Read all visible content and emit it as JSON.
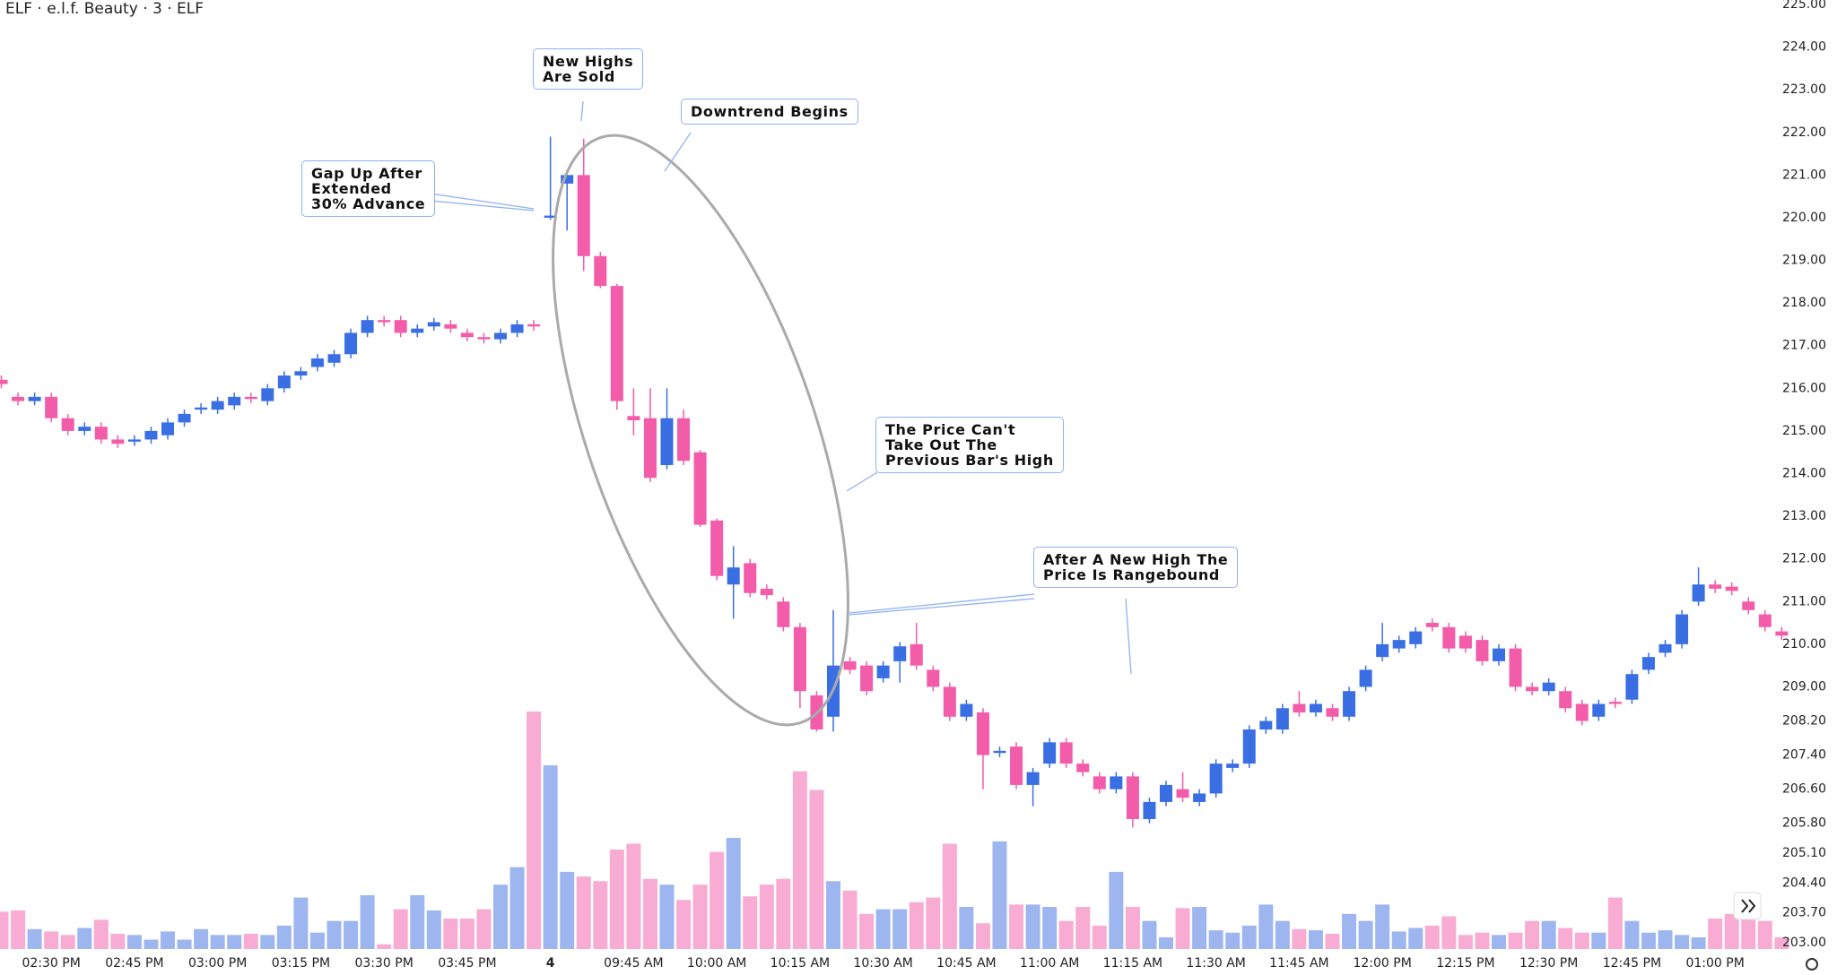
{
  "chart_data": {
    "type": "candlestick",
    "title": "ELF · e.l.f. Beauty · 3 · ELF",
    "up_color": "#3a6ee3",
    "down_color": "#f25ca9",
    "volume_up_color": "#9db6f0",
    "volume_down_color": "#f8acd3",
    "categories": [
      null,
      null,
      null,
      "02:30 PM",
      null,
      null,
      null,
      null,
      "02:45 PM",
      null,
      null,
      null,
      null,
      "03:00 PM",
      null,
      null,
      null,
      null,
      "03:15 PM",
      null,
      null,
      null,
      null,
      "03:30 PM",
      null,
      null,
      null,
      null,
      "03:45 PM",
      null,
      null,
      null,
      null,
      "4",
      null,
      null,
      null,
      null,
      "09:45 AM",
      null,
      null,
      null,
      null,
      "10:00 AM",
      null,
      null,
      null,
      null,
      "10:15 AM",
      null,
      null,
      null,
      null,
      "10:30 AM",
      null,
      null,
      null,
      null,
      "10:45 AM",
      null,
      null,
      null,
      null,
      "11:00 AM",
      null,
      null,
      null,
      null,
      "11:15 AM",
      null,
      null,
      null,
      null,
      "11:30 AM",
      null,
      null,
      null,
      null,
      "11:45 AM",
      null,
      null,
      null,
      null,
      "12:00 PM",
      null,
      null,
      null,
      null,
      "12:15 PM",
      null,
      null,
      null,
      null,
      "12:30 PM",
      null,
      null,
      null,
      null,
      "12:45 PM",
      null,
      null,
      null,
      null,
      "01:00 PM",
      null,
      null,
      null,
      null
    ],
    "open": [
      216.2,
      215.8,
      215.7,
      215.8,
      215.3,
      215.0,
      215.1,
      214.8,
      214.75,
      214.8,
      214.9,
      215.2,
      215.5,
      215.5,
      215.6,
      215.8,
      215.7,
      216.0,
      216.3,
      216.5,
      216.6,
      216.8,
      217.3,
      217.6,
      217.6,
      217.3,
      217.45,
      217.5,
      217.3,
      217.2,
      217.15,
      217.3,
      217.5,
      220.0,
      220.8,
      221.0,
      219.1,
      218.4,
      215.35,
      215.3,
      214.2,
      215.3,
      214.5,
      212.9,
      211.4,
      211.9,
      211.3,
      211.0,
      210.4,
      208.8,
      208.3,
      209.6,
      209.5,
      209.2,
      209.6,
      210.0,
      209.4,
      209.0,
      208.3,
      208.4,
      207.45,
      207.6,
      206.7,
      207.2,
      207.7,
      207.2,
      206.9,
      206.6,
      206.9,
      205.9,
      206.3,
      206.6,
      206.3,
      206.5,
      207.1,
      207.2,
      208.0,
      208.0,
      208.6,
      208.4,
      208.5,
      208.3,
      209.0,
      209.7,
      209.9,
      210.0,
      210.5,
      210.4,
      210.2,
      210.1,
      209.6,
      209.9,
      209.0,
      208.9,
      208.9,
      208.6,
      208.3,
      208.65,
      208.7,
      209.4,
      209.8,
      210.0,
      211.0,
      211.4,
      211.35,
      211.0,
      210.7,
      210.3
    ],
    "high": [
      216.3,
      215.9,
      215.9,
      215.9,
      215.4,
      215.2,
      215.2,
      214.9,
      214.9,
      215.1,
      215.3,
      215.5,
      215.65,
      215.8,
      215.9,
      215.9,
      216.1,
      216.4,
      216.5,
      216.8,
      216.9,
      217.4,
      217.7,
      217.7,
      217.7,
      217.5,
      217.65,
      217.6,
      217.4,
      217.3,
      217.4,
      217.6,
      217.6,
      221.9,
      221.05,
      221.85,
      219.2,
      218.45,
      216.0,
      216.0,
      216.0,
      215.5,
      214.55,
      212.95,
      212.3,
      212.0,
      211.4,
      211.1,
      210.5,
      208.9,
      210.8,
      209.7,
      209.6,
      209.6,
      210.05,
      210.5,
      209.5,
      209.1,
      208.7,
      208.5,
      207.6,
      207.7,
      207.1,
      207.8,
      207.8,
      207.3,
      207.0,
      207.0,
      207.0,
      206.4,
      206.8,
      207.0,
      206.6,
      207.3,
      207.3,
      208.1,
      208.3,
      208.6,
      208.9,
      208.7,
      208.6,
      209.0,
      209.5,
      210.5,
      210.2,
      210.4,
      210.6,
      210.5,
      210.3,
      210.2,
      210.0,
      210.0,
      209.1,
      209.2,
      209.0,
      208.7,
      208.7,
      208.75,
      209.4,
      209.8,
      210.1,
      210.8,
      211.8,
      211.5,
      211.45,
      211.1,
      210.8,
      210.4
    ],
    "low": [
      216.0,
      215.6,
      215.6,
      215.2,
      214.9,
      214.9,
      214.7,
      214.6,
      214.65,
      214.7,
      214.8,
      215.1,
      215.4,
      215.4,
      215.5,
      215.65,
      215.6,
      215.9,
      216.2,
      216.4,
      216.5,
      216.7,
      217.2,
      217.45,
      217.2,
      217.2,
      217.35,
      217.3,
      217.1,
      217.05,
      217.05,
      217.2,
      217.35,
      219.95,
      219.7,
      218.75,
      218.35,
      215.5,
      214.9,
      213.8,
      214.1,
      214.2,
      212.75,
      211.5,
      210.6,
      211.1,
      211.05,
      210.3,
      208.5,
      207.95,
      207.95,
      209.3,
      208.8,
      209.1,
      209.1,
      209.4,
      208.9,
      208.2,
      208.2,
      206.6,
      207.35,
      206.6,
      206.2,
      207.1,
      207.1,
      206.9,
      206.5,
      206.5,
      205.7,
      205.8,
      206.2,
      206.3,
      206.2,
      206.4,
      207.0,
      207.1,
      207.9,
      207.9,
      208.3,
      208.3,
      208.2,
      208.2,
      208.9,
      209.6,
      209.8,
      209.9,
      210.3,
      209.8,
      209.8,
      209.5,
      209.5,
      208.9,
      208.8,
      208.8,
      208.4,
      208.1,
      208.2,
      208.5,
      208.6,
      209.3,
      209.7,
      209.9,
      210.9,
      211.2,
      211.15,
      210.7,
      210.3,
      210.1
    ],
    "close": [
      216.1,
      215.7,
      215.8,
      215.3,
      215.0,
      215.1,
      214.8,
      214.7,
      214.8,
      215.0,
      215.2,
      215.4,
      215.55,
      215.7,
      215.8,
      215.75,
      216.0,
      216.3,
      216.4,
      216.7,
      216.8,
      217.3,
      217.6,
      217.55,
      217.3,
      217.4,
      217.55,
      217.4,
      217.2,
      217.15,
      217.3,
      217.5,
      217.45,
      220.05,
      221.0,
      219.1,
      218.4,
      215.7,
      215.25,
      213.9,
      215.3,
      214.3,
      212.8,
      211.6,
      211.8,
      211.2,
      211.15,
      210.4,
      208.9,
      208.0,
      209.5,
      209.4,
      208.9,
      209.5,
      209.95,
      209.5,
      209.0,
      208.3,
      208.6,
      207.4,
      207.5,
      206.7,
      207.0,
      207.7,
      207.2,
      207.0,
      206.6,
      206.9,
      205.9,
      206.3,
      206.7,
      206.4,
      206.5,
      207.2,
      207.2,
      208.0,
      208.2,
      208.5,
      208.4,
      208.6,
      208.3,
      208.9,
      209.4,
      210.0,
      210.1,
      210.3,
      210.4,
      209.9,
      209.9,
      209.6,
      209.9,
      209.0,
      208.9,
      209.1,
      208.5,
      208.2,
      208.6,
      208.6,
      209.3,
      209.7,
      210.0,
      210.7,
      211.4,
      211.3,
      211.25,
      210.8,
      210.4,
      210.2
    ],
    "volume": [
      32,
      33,
      17,
      15,
      12,
      18,
      25,
      13,
      12,
      8,
      15,
      8,
      17,
      12,
      12,
      13,
      12,
      20,
      44,
      14,
      24,
      24,
      46,
      4,
      34,
      46,
      33,
      26,
      26,
      34,
      55,
      70,
      203,
      157,
      66,
      62,
      58,
      85,
      90,
      60,
      55,
      42,
      55,
      83,
      95,
      45,
      55,
      60,
      152,
      136,
      58,
      50,
      30,
      34,
      34,
      40,
      44,
      90,
      36,
      22,
      92,
      38,
      38,
      36,
      24,
      36,
      20,
      66,
      36,
      24,
      10,
      35,
      36,
      16,
      14,
      20,
      38,
      24,
      17,
      16,
      13,
      30,
      24,
      38,
      15,
      18,
      20,
      28,
      12,
      14,
      12,
      14,
      24,
      24,
      18,
      14,
      14,
      44,
      24,
      14,
      16,
      12,
      10,
      26,
      30,
      32,
      24,
      10
    ],
    "ylim": [
      203,
      225
    ],
    "yticks": [
      {
        "value": 225,
        "label": "225.00"
      },
      {
        "value": 224,
        "label": "224.00"
      },
      {
        "value": 223,
        "label": "223.00"
      },
      {
        "value": 222,
        "label": "222.00"
      },
      {
        "value": 221,
        "label": "221.00"
      },
      {
        "value": 220,
        "label": "220.00"
      },
      {
        "value": 219,
        "label": "219.00"
      },
      {
        "value": 218,
        "label": "218.00"
      },
      {
        "value": 217,
        "label": "217.00"
      },
      {
        "value": 216,
        "label": "216.00"
      },
      {
        "value": 215,
        "label": "215.00"
      },
      {
        "value": 214,
        "label": "214.00"
      },
      {
        "value": 213,
        "label": "213.00"
      },
      {
        "value": 212,
        "label": "212.00"
      },
      {
        "value": 211,
        "label": "211.00"
      },
      {
        "value": 210,
        "label": "210.00"
      },
      {
        "value": 209,
        "label": "209.00"
      },
      {
        "value": 208.2,
        "label": "208.20"
      },
      {
        "value": 207.4,
        "label": "207.40"
      },
      {
        "value": 206.6,
        "label": "206.60"
      },
      {
        "value": 205.8,
        "label": "205.80"
      },
      {
        "value": 205.1,
        "label": "205.10"
      },
      {
        "value": 204.4,
        "label": "204.40"
      },
      {
        "value": 203.7,
        "label": "203.70"
      },
      {
        "value": 203,
        "label": "203.00"
      }
    ],
    "annotations": [
      {
        "text": "New Highs\nAre Sold"
      },
      {
        "text": "Downtrend Begins"
      },
      {
        "text": "Gap Up After\nExtended\n30% Advance"
      },
      {
        "text": "The Price Can't\nTake Out The\nPrevious Bar's High"
      },
      {
        "text": "After A New High The\nPrice Is Rangebound"
      }
    ]
  }
}
